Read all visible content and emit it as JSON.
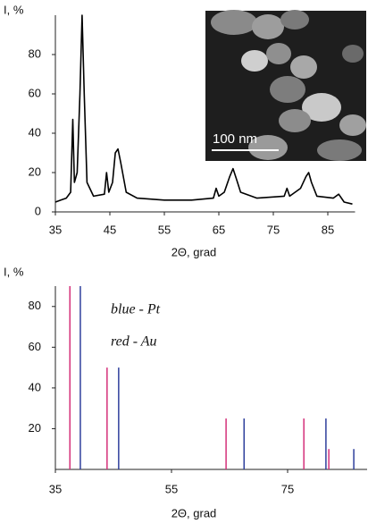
{
  "chart_data": [
    {
      "type": "line",
      "ylabel": "I, %",
      "xlabel": "2Θ, grad",
      "color": "#000000",
      "xlim": [
        35,
        90
      ],
      "ylim": [
        0,
        100
      ],
      "xticks": [
        35,
        45,
        55,
        65,
        75,
        85
      ],
      "yticks": [
        0,
        20,
        40,
        60,
        80
      ],
      "inset_label": "100 nm",
      "x": [
        35,
        36,
        37,
        37.8,
        38.2,
        38.5,
        39,
        39.5,
        39.9,
        40.3,
        40.8,
        42,
        44,
        44.4,
        44.8,
        45.5,
        46,
        46.5,
        47,
        48,
        50,
        55,
        60,
        64,
        64.5,
        65,
        66,
        67,
        67.6,
        68.2,
        69,
        72,
        77,
        77.5,
        78,
        80,
        81,
        81.5,
        82,
        83,
        86,
        87,
        88,
        89.5
      ],
      "values": [
        5,
        6,
        7,
        10,
        47,
        15,
        20,
        60,
        100,
        60,
        15,
        8,
        9,
        20,
        10,
        15,
        30,
        32,
        25,
        10,
        7,
        6,
        6,
        7,
        12,
        8,
        10,
        18,
        22,
        17,
        10,
        7,
        8,
        12,
        8,
        12,
        18,
        20,
        15,
        8,
        7,
        9,
        5,
        4
      ]
    },
    {
      "type": "stick",
      "ylabel": "I, %",
      "xlabel": "2Θ, grad",
      "xlim": [
        35,
        89
      ],
      "ylim": [
        0,
        90
      ],
      "xticks": [
        35,
        55,
        75
      ],
      "yticks": [
        20,
        40,
        60,
        80
      ],
      "series": [
        {
          "name": "blue - Pt",
          "color": "#2e3f9c",
          "x": [
            39.3,
            45.9,
            67.5,
            81.6,
            86.4
          ],
          "values": [
            90,
            50,
            25,
            25,
            10
          ]
        },
        {
          "name": "red - Au",
          "color": "#d4307a",
          "x": [
            37.5,
            43.9,
            64.4,
            77.8,
            82.1
          ],
          "values": [
            90,
            50,
            25,
            25,
            10
          ]
        }
      ]
    }
  ]
}
